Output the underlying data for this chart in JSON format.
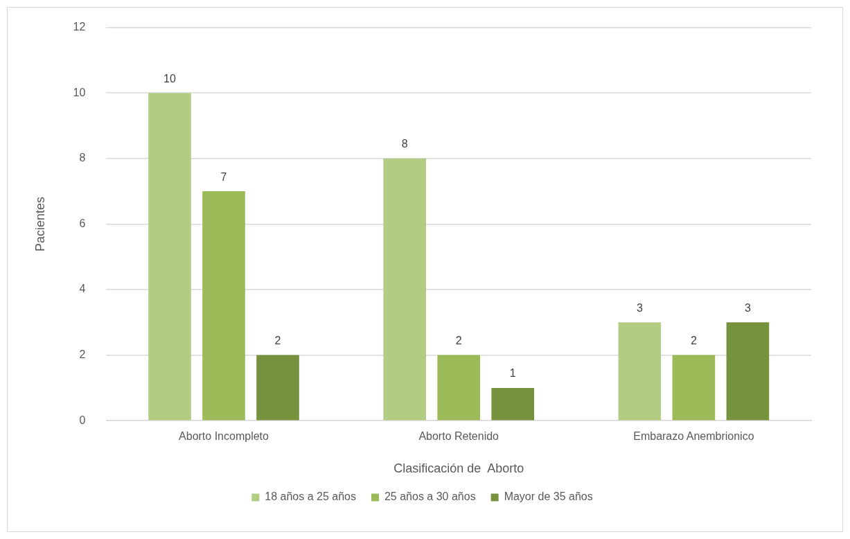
{
  "chart_data": {
    "type": "bar",
    "xlabel": "Clasificación de  Aborto",
    "ylabel": "Pacientes",
    "categories": [
      "Aborto Incompleto",
      "Aborto Retenido",
      "Embarazo Anembrionico"
    ],
    "series": [
      {
        "name": "18 años a 25 años",
        "color": "#b3cc84",
        "values": [
          10,
          8,
          3
        ]
      },
      {
        "name": "25 años a 30 años",
        "color": "#9bbb59",
        "values": [
          7,
          2,
          2
        ]
      },
      {
        "name": "Mayor de 35 años",
        "color": "#76923c",
        "values": [
          2,
          1,
          3
        ]
      }
    ],
    "ylim": [
      0,
      12
    ],
    "yticks": [
      0,
      2,
      4,
      6,
      8,
      10,
      12
    ],
    "grid": "y",
    "legend": "bottom",
    "data_labels": true
  }
}
